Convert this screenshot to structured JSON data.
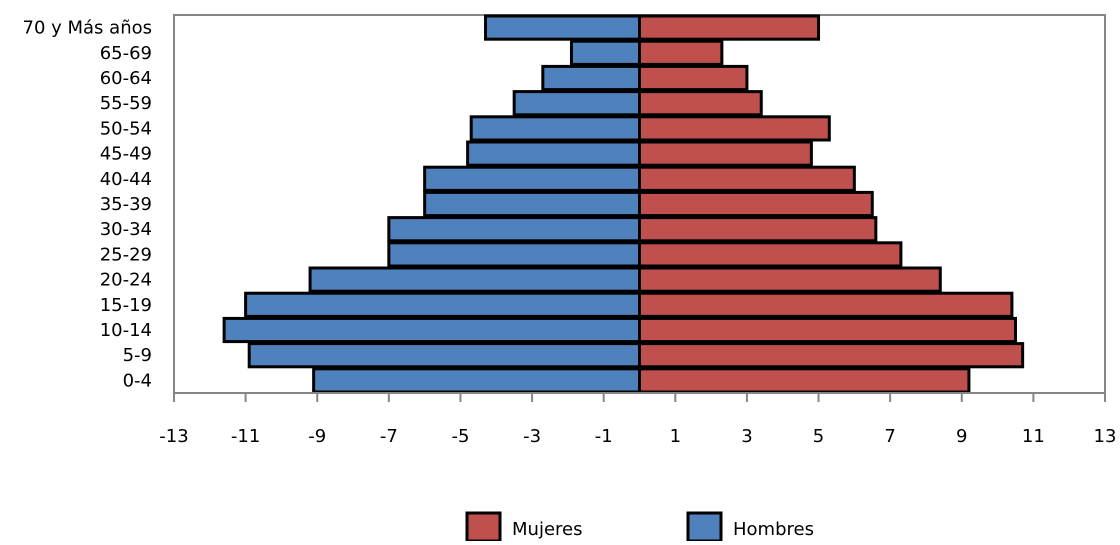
{
  "chart_data": {
    "type": "bar",
    "orientation": "horizontal",
    "stacked_diverging": true,
    "categories": [
      "0-4",
      "5-9",
      "10-14",
      "15-19",
      "20-24",
      "25-29",
      "30-34",
      "35-39",
      "40-44",
      "45-49",
      "50-54",
      "55-59",
      "60-64",
      "65-69",
      "70 y Más años"
    ],
    "series": [
      {
        "name": "Mujeres",
        "color": "#C0504D",
        "values": [
          9.2,
          10.7,
          10.5,
          10.4,
          8.4,
          7.3,
          6.6,
          6.5,
          6.0,
          4.8,
          5.3,
          3.4,
          3.0,
          2.3,
          5.0
        ]
      },
      {
        "name": "Hombres",
        "color": "#4F81BD",
        "values": [
          -9.1,
          -10.9,
          -11.6,
          -11.0,
          -9.2,
          -7.0,
          -7.0,
          -6.0,
          -6.0,
          -4.8,
          -4.7,
          -3.5,
          -2.7,
          -1.9,
          -4.3
        ]
      }
    ],
    "xlim": [
      -13,
      13
    ],
    "xticks": [
      "-13",
      "-11",
      "-9",
      "-7",
      "-5",
      "-3",
      "-1",
      "1",
      "3",
      "5",
      "7",
      "9",
      "11",
      "13"
    ],
    "legend_position": "bottom",
    "grid": false
  }
}
